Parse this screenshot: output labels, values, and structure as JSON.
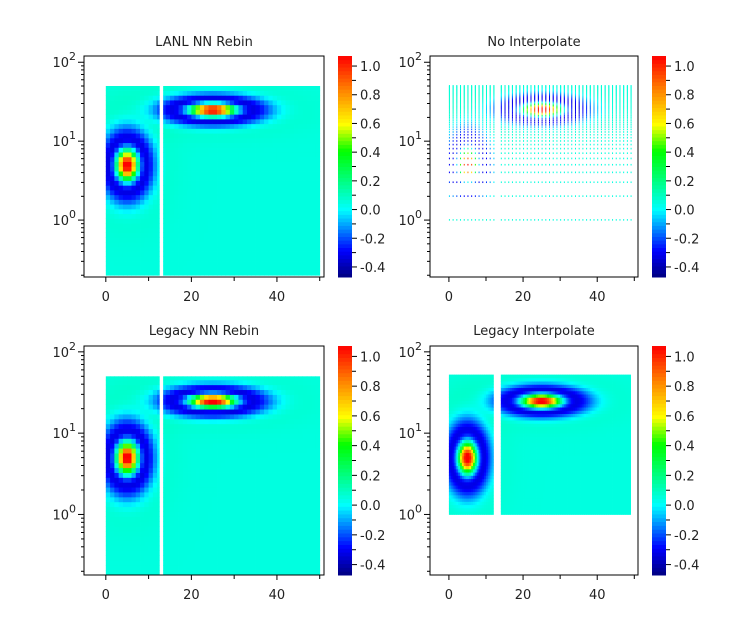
{
  "chart_data": [
    {
      "type": "heatmap",
      "title": "LANL NN Rebin",
      "render": "rebin",
      "xlim": [
        -5.1,
        51
      ],
      "ylim": [
        0.19,
        120
      ],
      "yscale": "log",
      "xticks": [
        0,
        20,
        40
      ],
      "xtick_labels": [
        "0",
        "20",
        "40"
      ],
      "yticks": [
        1,
        10,
        100
      ],
      "ytick_labels": [
        {
          "base": "10",
          "exp": "0"
        },
        {
          "base": "10",
          "exp": "1"
        },
        {
          "base": "10",
          "exp": "2"
        }
      ],
      "data_extent": {
        "x": [
          0,
          50
        ],
        "x_gap": [
          12.5,
          13.4
        ],
        "y": [
          0.2,
          50
        ]
      },
      "features": [
        {
          "x": 5,
          "y": 5,
          "peak": 1.0,
          "min": -0.45
        },
        {
          "x": 25,
          "y": 25,
          "peak": 1.0,
          "min": -0.45
        }
      ],
      "colorbar": {
        "clim": [
          -0.47,
          1.07
        ],
        "ticks": [
          -0.4,
          -0.2,
          0.0,
          0.2,
          0.4,
          0.6,
          0.8,
          1.0
        ],
        "tick_labels": [
          "-0.4",
          "-0.2",
          "0.0",
          "0.2",
          "0.4",
          "0.6",
          "0.8",
          "1.0"
        ]
      }
    },
    {
      "type": "heatmap",
      "title": "No Interpolate",
      "render": "points",
      "xlim": [
        -5.1,
        51
      ],
      "ylim": [
        0.19,
        120
      ],
      "yscale": "log",
      "xticks": [
        0,
        20,
        40
      ],
      "xtick_labels": [
        "0",
        "20",
        "40"
      ],
      "yticks": [
        1,
        10,
        100
      ],
      "ytick_labels": [
        {
          "base": "10",
          "exp": "0"
        },
        {
          "base": "10",
          "exp": "1"
        },
        {
          "base": "10",
          "exp": "2"
        }
      ],
      "data_extent": {
        "x": [
          0,
          49
        ],
        "x_gap": [
          12.5,
          13.5
        ],
        "y": [
          1,
          50
        ]
      },
      "features": [
        {
          "x": 5,
          "y": 5,
          "peak": 1.0,
          "min": -0.45
        },
        {
          "x": 25,
          "y": 25,
          "peak": 1.0,
          "min": -0.45
        }
      ],
      "colorbar": {
        "clim": [
          -0.47,
          1.07
        ],
        "ticks": [
          -0.4,
          -0.2,
          0.0,
          0.2,
          0.4,
          0.6,
          0.8,
          1.0
        ],
        "tick_labels": [
          "-0.4",
          "-0.2",
          "0.0",
          "0.2",
          "0.4",
          "0.6",
          "0.8",
          "1.0"
        ]
      }
    },
    {
      "type": "heatmap",
      "title": "Legacy NN Rebin",
      "render": "rebin",
      "xlim": [
        -5.1,
        51
      ],
      "ylim": [
        0.18,
        118
      ],
      "yscale": "log",
      "xticks": [
        0,
        20,
        40
      ],
      "xtick_labels": [
        "0",
        "20",
        "40"
      ],
      "yticks": [
        1,
        10,
        100
      ],
      "ytick_labels": [
        {
          "base": "10",
          "exp": "0"
        },
        {
          "base": "10",
          "exp": "1"
        },
        {
          "base": "10",
          "exp": "2"
        }
      ],
      "data_extent": {
        "x": [
          0,
          50
        ],
        "x_gap": [
          12.5,
          13.4
        ],
        "y": [
          0.18,
          50
        ]
      },
      "features": [
        {
          "x": 5,
          "y": 5,
          "peak": 1.0,
          "min": -0.45
        },
        {
          "x": 25,
          "y": 25,
          "peak": 1.0,
          "min": -0.45
        }
      ],
      "colorbar": {
        "clim": [
          -0.47,
          1.07
        ],
        "ticks": [
          -0.4,
          -0.2,
          0.0,
          0.2,
          0.4,
          0.6,
          0.8,
          1.0
        ],
        "tick_labels": [
          "-0.4",
          "-0.2",
          "0.0",
          "0.2",
          "0.4",
          "0.6",
          "0.8",
          "1.0"
        ]
      }
    },
    {
      "type": "heatmap",
      "title": "Legacy Interpolate",
      "render": "interpolated",
      "xlim": [
        -5.1,
        51
      ],
      "ylim": [
        0.18,
        118
      ],
      "yscale": "log",
      "xticks": [
        0,
        20,
        40
      ],
      "xtick_labels": [
        "0",
        "20",
        "40"
      ],
      "yticks": [
        1,
        10,
        100
      ],
      "ytick_labels": [
        {
          "base": "10",
          "exp": "0"
        },
        {
          "base": "10",
          "exp": "1"
        },
        {
          "base": "10",
          "exp": "2"
        }
      ],
      "data_extent": {
        "x": [
          0,
          49
        ],
        "x_gap": [
          12,
          13.8
        ],
        "y": [
          1,
          50
        ]
      },
      "features": [
        {
          "x": 5,
          "y": 5,
          "peak": 1.0,
          "min": -0.45
        },
        {
          "x": 25,
          "y": 25,
          "peak": 1.0,
          "min": -0.45
        }
      ],
      "colorbar": {
        "clim": [
          -0.47,
          1.07
        ],
        "ticks": [
          -0.4,
          -0.2,
          0.0,
          0.2,
          0.4,
          0.6,
          0.8,
          1.0
        ],
        "tick_labels": [
          "-0.4",
          "-0.2",
          "0.0",
          "0.2",
          "0.4",
          "0.6",
          "0.8",
          "1.0"
        ]
      }
    }
  ]
}
